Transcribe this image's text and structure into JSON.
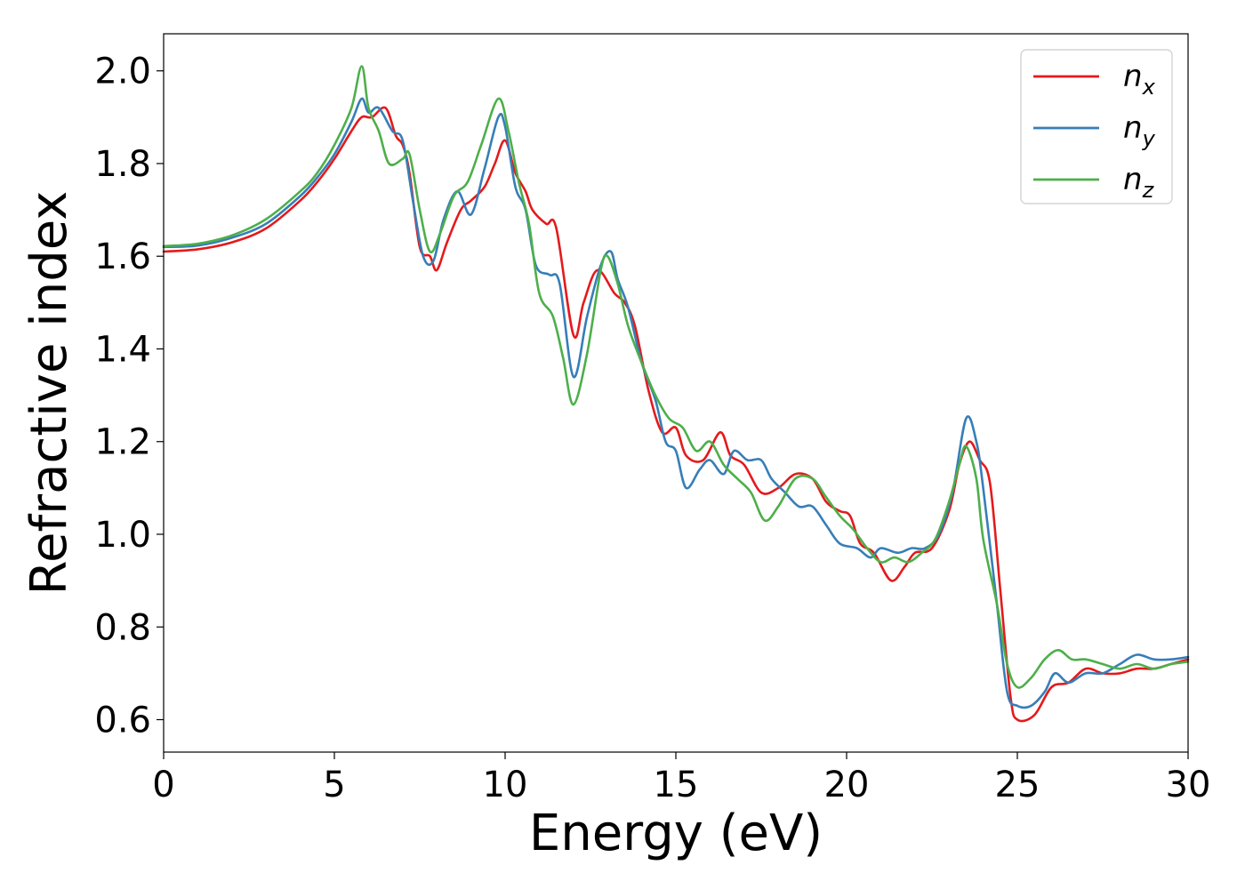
{
  "chart_data": {
    "type": "line",
    "xlabel": "Energy (eV)",
    "ylabel": "Refractive index",
    "xlim": [
      0,
      30
    ],
    "ylim": [
      0.53,
      2.08
    ],
    "xticks": [
      0,
      5,
      10,
      15,
      20,
      25,
      30
    ],
    "yticks": [
      0.6,
      0.8,
      1.0,
      1.2,
      1.4,
      1.6,
      1.8,
      2.0
    ],
    "ytick_labels": [
      "0.6",
      "0.8",
      "1.0",
      "1.2",
      "1.4",
      "1.6",
      "1.8",
      "2.0"
    ],
    "legend_position": "top-right",
    "grid": false,
    "series": [
      {
        "name": "n",
        "subscript": "x",
        "color": "#e41a1c",
        "points": [
          [
            0,
            1.61
          ],
          [
            1,
            1.615
          ],
          [
            2,
            1.63
          ],
          [
            3,
            1.66
          ],
          [
            4,
            1.72
          ],
          [
            4.5,
            1.76
          ],
          [
            5,
            1.81
          ],
          [
            5.5,
            1.87
          ],
          [
            5.8,
            1.9
          ],
          [
            6.1,
            1.9
          ],
          [
            6.5,
            1.92
          ],
          [
            6.8,
            1.86
          ],
          [
            7.0,
            1.84
          ],
          [
            7.2,
            1.78
          ],
          [
            7.5,
            1.62
          ],
          [
            7.8,
            1.6
          ],
          [
            8.0,
            1.57
          ],
          [
            8.3,
            1.63
          ],
          [
            8.7,
            1.7
          ],
          [
            9.0,
            1.72
          ],
          [
            9.4,
            1.75
          ],
          [
            9.7,
            1.8
          ],
          [
            10.0,
            1.85
          ],
          [
            10.3,
            1.78
          ],
          [
            10.6,
            1.74
          ],
          [
            10.8,
            1.7
          ],
          [
            11.2,
            1.67
          ],
          [
            11.5,
            1.66
          ],
          [
            12.0,
            1.43
          ],
          [
            12.3,
            1.5
          ],
          [
            12.7,
            1.57
          ],
          [
            13.2,
            1.52
          ],
          [
            13.5,
            1.5
          ],
          [
            13.8,
            1.45
          ],
          [
            14.2,
            1.31
          ],
          [
            14.6,
            1.22
          ],
          [
            15.0,
            1.23
          ],
          [
            15.3,
            1.17
          ],
          [
            15.8,
            1.16
          ],
          [
            16.3,
            1.22
          ],
          [
            16.6,
            1.17
          ],
          [
            17.0,
            1.15
          ],
          [
            17.5,
            1.09
          ],
          [
            18.0,
            1.1
          ],
          [
            18.5,
            1.13
          ],
          [
            19.0,
            1.12
          ],
          [
            19.4,
            1.07
          ],
          [
            19.8,
            1.05
          ],
          [
            20.1,
            1.04
          ],
          [
            20.4,
            0.98
          ],
          [
            20.8,
            0.96
          ],
          [
            21.3,
            0.9
          ],
          [
            21.7,
            0.93
          ],
          [
            22.0,
            0.96
          ],
          [
            22.5,
            0.97
          ],
          [
            23.0,
            1.05
          ],
          [
            23.3,
            1.15
          ],
          [
            23.6,
            1.2
          ],
          [
            23.9,
            1.16
          ],
          [
            24.2,
            1.11
          ],
          [
            24.5,
            0.88
          ],
          [
            24.8,
            0.65
          ],
          [
            25.0,
            0.6
          ],
          [
            25.5,
            0.61
          ],
          [
            26.0,
            0.67
          ],
          [
            26.5,
            0.68
          ],
          [
            27.0,
            0.71
          ],
          [
            27.5,
            0.7
          ],
          [
            28.0,
            0.7
          ],
          [
            28.5,
            0.71
          ],
          [
            29.0,
            0.71
          ],
          [
            29.5,
            0.72
          ],
          [
            30,
            0.73
          ]
        ]
      },
      {
        "name": "n",
        "subscript": "y",
        "color": "#377eb8",
        "points": [
          [
            0,
            1.62
          ],
          [
            1,
            1.623
          ],
          [
            2,
            1.64
          ],
          [
            3,
            1.67
          ],
          [
            4,
            1.73
          ],
          [
            4.5,
            1.77
          ],
          [
            5,
            1.82
          ],
          [
            5.5,
            1.89
          ],
          [
            5.8,
            1.94
          ],
          [
            6.0,
            1.91
          ],
          [
            6.3,
            1.92
          ],
          [
            6.7,
            1.87
          ],
          [
            7.0,
            1.85
          ],
          [
            7.3,
            1.72
          ],
          [
            7.6,
            1.6
          ],
          [
            7.9,
            1.59
          ],
          [
            8.2,
            1.68
          ],
          [
            8.6,
            1.74
          ],
          [
            9.0,
            1.69
          ],
          [
            9.4,
            1.79
          ],
          [
            9.8,
            1.9
          ],
          [
            10.0,
            1.88
          ],
          [
            10.3,
            1.75
          ],
          [
            10.6,
            1.7
          ],
          [
            10.9,
            1.58
          ],
          [
            11.3,
            1.56
          ],
          [
            11.6,
            1.54
          ],
          [
            12.0,
            1.34
          ],
          [
            12.4,
            1.47
          ],
          [
            12.8,
            1.58
          ],
          [
            13.1,
            1.61
          ],
          [
            13.3,
            1.55
          ],
          [
            13.6,
            1.49
          ],
          [
            14.0,
            1.37
          ],
          [
            14.4,
            1.29
          ],
          [
            14.7,
            1.2
          ],
          [
            15.0,
            1.18
          ],
          [
            15.3,
            1.1
          ],
          [
            15.7,
            1.14
          ],
          [
            16.0,
            1.16
          ],
          [
            16.4,
            1.13
          ],
          [
            16.7,
            1.18
          ],
          [
            17.1,
            1.16
          ],
          [
            17.5,
            1.16
          ],
          [
            17.8,
            1.12
          ],
          [
            18.2,
            1.09
          ],
          [
            18.6,
            1.06
          ],
          [
            19.0,
            1.06
          ],
          [
            19.4,
            1.02
          ],
          [
            19.8,
            0.98
          ],
          [
            20.3,
            0.97
          ],
          [
            20.7,
            0.95
          ],
          [
            21.0,
            0.97
          ],
          [
            21.5,
            0.96
          ],
          [
            21.9,
            0.97
          ],
          [
            22.3,
            0.97
          ],
          [
            22.7,
            1.0
          ],
          [
            23.1,
            1.09
          ],
          [
            23.5,
            1.25
          ],
          [
            23.8,
            1.2
          ],
          [
            24.0,
            1.1
          ],
          [
            24.4,
            0.85
          ],
          [
            24.7,
            0.66
          ],
          [
            25.0,
            0.63
          ],
          [
            25.4,
            0.63
          ],
          [
            25.8,
            0.66
          ],
          [
            26.1,
            0.7
          ],
          [
            26.5,
            0.68
          ],
          [
            27.0,
            0.7
          ],
          [
            27.5,
            0.7
          ],
          [
            28.0,
            0.72
          ],
          [
            28.5,
            0.74
          ],
          [
            29.0,
            0.73
          ],
          [
            29.5,
            0.73
          ],
          [
            30,
            0.735
          ]
        ]
      },
      {
        "name": "n",
        "subscript": "z",
        "color": "#4daf4a",
        "points": [
          [
            0,
            1.622
          ],
          [
            1,
            1.627
          ],
          [
            2,
            1.645
          ],
          [
            3,
            1.68
          ],
          [
            4,
            1.74
          ],
          [
            4.5,
            1.78
          ],
          [
            5,
            1.84
          ],
          [
            5.5,
            1.92
          ],
          [
            5.8,
            2.01
          ],
          [
            6.0,
            1.92
          ],
          [
            6.3,
            1.87
          ],
          [
            6.6,
            1.8
          ],
          [
            7.0,
            1.81
          ],
          [
            7.2,
            1.82
          ],
          [
            7.5,
            1.7
          ],
          [
            7.8,
            1.61
          ],
          [
            8.1,
            1.65
          ],
          [
            8.5,
            1.73
          ],
          [
            8.9,
            1.76
          ],
          [
            9.3,
            1.84
          ],
          [
            9.8,
            1.94
          ],
          [
            10.1,
            1.87
          ],
          [
            10.4,
            1.76
          ],
          [
            10.7,
            1.67
          ],
          [
            11.0,
            1.52
          ],
          [
            11.4,
            1.47
          ],
          [
            11.7,
            1.38
          ],
          [
            12.0,
            1.28
          ],
          [
            12.4,
            1.39
          ],
          [
            12.8,
            1.57
          ],
          [
            13.0,
            1.6
          ],
          [
            13.3,
            1.54
          ],
          [
            13.6,
            1.45
          ],
          [
            14.0,
            1.37
          ],
          [
            14.4,
            1.3
          ],
          [
            14.8,
            1.25
          ],
          [
            15.2,
            1.23
          ],
          [
            15.6,
            1.18
          ],
          [
            16.0,
            1.2
          ],
          [
            16.4,
            1.15
          ],
          [
            16.8,
            1.12
          ],
          [
            17.2,
            1.09
          ],
          [
            17.6,
            1.03
          ],
          [
            18.0,
            1.06
          ],
          [
            18.5,
            1.12
          ],
          [
            19.0,
            1.12
          ],
          [
            19.4,
            1.08
          ],
          [
            19.8,
            1.04
          ],
          [
            20.2,
            1.01
          ],
          [
            20.6,
            0.97
          ],
          [
            21.0,
            0.94
          ],
          [
            21.4,
            0.95
          ],
          [
            21.8,
            0.94
          ],
          [
            22.2,
            0.96
          ],
          [
            22.6,
            0.99
          ],
          [
            23.0,
            1.07
          ],
          [
            23.3,
            1.15
          ],
          [
            23.5,
            1.19
          ],
          [
            23.8,
            1.12
          ],
          [
            24.0,
            0.99
          ],
          [
            24.4,
            0.85
          ],
          [
            24.7,
            0.72
          ],
          [
            25.0,
            0.67
          ],
          [
            25.4,
            0.69
          ],
          [
            25.8,
            0.73
          ],
          [
            26.2,
            0.75
          ],
          [
            26.6,
            0.73
          ],
          [
            27.0,
            0.73
          ],
          [
            27.5,
            0.72
          ],
          [
            28.0,
            0.71
          ],
          [
            28.5,
            0.72
          ],
          [
            29.0,
            0.71
          ],
          [
            29.5,
            0.72
          ],
          [
            30,
            0.725
          ]
        ]
      }
    ]
  }
}
